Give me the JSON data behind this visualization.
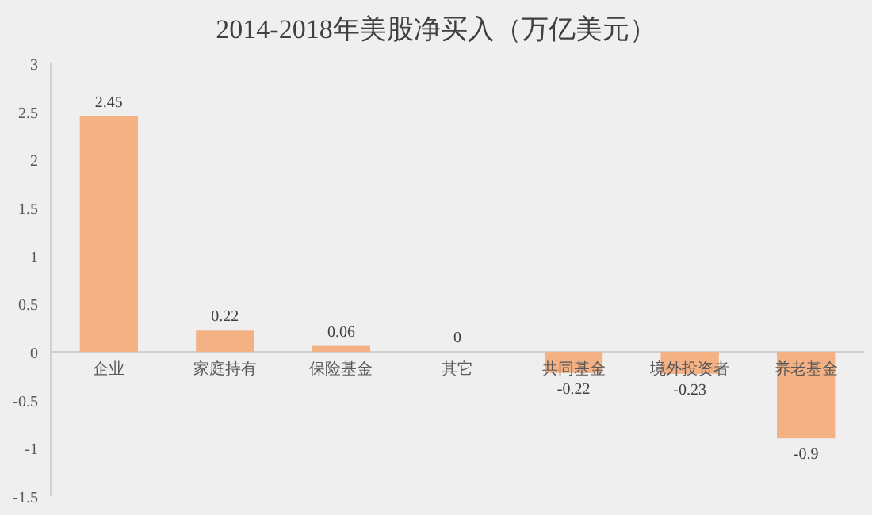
{
  "chart_data": {
    "type": "bar",
    "title": "2014-2018年美股净买入（万亿美元）",
    "categories": [
      "企业",
      "家庭持有",
      "保险基金",
      "其它",
      "共同基金",
      "境外投资者",
      "养老基金"
    ],
    "values": [
      2.45,
      0.22,
      0.06,
      0,
      -0.22,
      -0.23,
      -0.9
    ],
    "color": "#f4b183",
    "ylim": [
      -1.5,
      3
    ],
    "yticks": [
      -1.5,
      -1,
      -0.5,
      0,
      0.5,
      1,
      1.5,
      2,
      2.5,
      3
    ],
    "grid": false,
    "data_labels": true
  }
}
